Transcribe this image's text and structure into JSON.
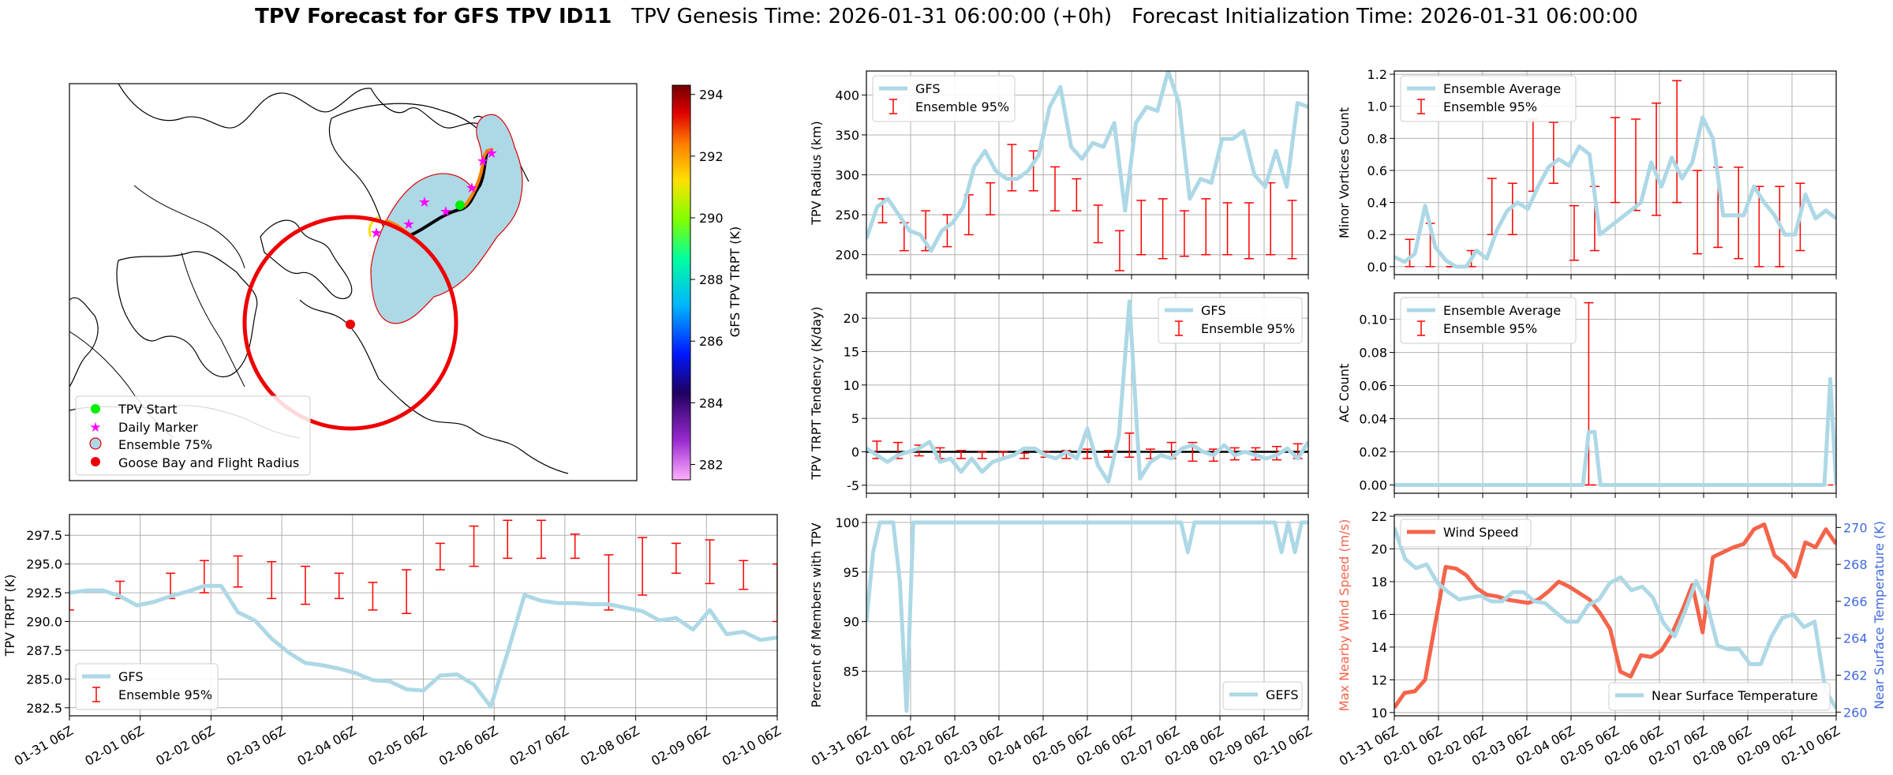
{
  "title": {
    "bold": "TPV Forecast for GFS TPV ID11",
    "genesis": "TPV Genesis Time: 2026-01-31 06:00:00 (+0h)",
    "init": "Forecast Initialization Time: 2026-01-31 06:00:00"
  },
  "colors": {
    "light_blue": "#add8e6",
    "red": "#ff0000",
    "wind": "#f4644a",
    "temp_axis": "#4169e1",
    "green": "#00ee00",
    "magenta": "#ff00ff"
  },
  "x_ticks": [
    "01-31 06Z",
    "02-01 06Z",
    "02-02 06Z",
    "02-03 06Z",
    "02-04 06Z",
    "02-05 06Z",
    "02-06 06Z",
    "02-07 06Z",
    "02-08 06Z",
    "02-09 06Z",
    "02-10 06Z"
  ],
  "map": {
    "colorbar": {
      "label": "GFS TPV TRPT (K)",
      "ticks": [
        282,
        284,
        286,
        288,
        290,
        292,
        294
      ],
      "range": [
        281.5,
        294.3
      ]
    },
    "legend": [
      "TPV Start",
      "Daily Marker",
      "Ensemble 75%",
      "Goose Bay and Flight Radius"
    ]
  },
  "chart_data": [
    {
      "id": "radius",
      "type": "line",
      "ylabel": "TPV Radius (km)",
      "ylim": [
        175,
        430
      ],
      "yticks": [
        200,
        250,
        300,
        350,
        400
      ],
      "legend": {
        "series": "GFS",
        "error": "Ensemble 95%",
        "placement": "upper left"
      },
      "series": [
        {
          "name": "GFS",
          "values": [
            220,
            260,
            270,
            250,
            230,
            225,
            205,
            230,
            240,
            260,
            310,
            330,
            305,
            295,
            295,
            305,
            325,
            385,
            410,
            335,
            320,
            340,
            335,
            365,
            255,
            365,
            385,
            380,
            430,
            390,
            270,
            295,
            290,
            345,
            345,
            355,
            300,
            285,
            330,
            285,
            390,
            385
          ]
        }
      ],
      "errorbars": [
        {
          "x": 1.5,
          "lo": 240,
          "hi": 270
        },
        {
          "x": 3.5,
          "lo": 205,
          "hi": 240
        },
        {
          "x": 5.5,
          "lo": 205,
          "hi": 255
        },
        {
          "x": 7.5,
          "lo": 210,
          "hi": 250
        },
        {
          "x": 9.5,
          "lo": 225,
          "hi": 275
        },
        {
          "x": 11.5,
          "lo": 250,
          "hi": 290
        },
        {
          "x": 13.5,
          "lo": 280,
          "hi": 338
        },
        {
          "x": 15.5,
          "lo": 280,
          "hi": 330
        },
        {
          "x": 17.5,
          "lo": 255,
          "hi": 310
        },
        {
          "x": 19.5,
          "lo": 255,
          "hi": 295
        },
        {
          "x": 21.5,
          "lo": 215,
          "hi": 262
        },
        {
          "x": 23.5,
          "lo": 180,
          "hi": 230
        },
        {
          "x": 25.5,
          "lo": 200,
          "hi": 268
        },
        {
          "x": 27.5,
          "lo": 195,
          "hi": 270
        },
        {
          "x": 29.5,
          "lo": 198,
          "hi": 255
        },
        {
          "x": 31.5,
          "lo": 200,
          "hi": 270
        },
        {
          "x": 33.5,
          "lo": 200,
          "hi": 265
        },
        {
          "x": 35.5,
          "lo": 195,
          "hi": 265
        },
        {
          "x": 37.5,
          "lo": 200,
          "hi": 290
        },
        {
          "x": 39.5,
          "lo": 195,
          "hi": 268
        }
      ]
    },
    {
      "id": "minor",
      "type": "line",
      "ylabel": "Minor Vortices Count",
      "ylim": [
        -0.05,
        1.22
      ],
      "yticks": [
        0.0,
        0.2,
        0.4,
        0.6,
        0.8,
        1.0,
        1.2
      ],
      "legend": {
        "series": "Ensemble Average",
        "error": "Ensemble 95%",
        "placement": "upper left"
      },
      "series": [
        {
          "name": "Ensemble Average",
          "values": [
            0.06,
            0.03,
            0.08,
            0.38,
            0.12,
            0.04,
            0.0,
            0.0,
            0.1,
            0.05,
            0.23,
            0.35,
            0.4,
            0.36,
            0.5,
            0.62,
            0.67,
            0.63,
            0.75,
            0.7,
            0.2,
            0.25,
            0.3,
            0.35,
            0.4,
            0.65,
            0.5,
            0.68,
            0.55,
            0.65,
            0.93,
            0.8,
            0.32,
            0.32,
            0.32,
            0.5,
            0.4,
            0.32,
            0.2,
            0.2,
            0.45,
            0.3,
            0.35,
            0.3
          ]
        }
      ],
      "errorbars": [
        {
          "x": 1.5,
          "lo": 0.0,
          "hi": 0.17
        },
        {
          "x": 3.5,
          "lo": 0.0,
          "hi": 0.27
        },
        {
          "x": 5.5,
          "lo": 0.0,
          "hi": 0.0
        },
        {
          "x": 7.5,
          "lo": 0.0,
          "hi": 0.1
        },
        {
          "x": 9.5,
          "lo": 0.2,
          "hi": 0.55
        },
        {
          "x": 11.5,
          "lo": 0.2,
          "hi": 0.52
        },
        {
          "x": 13.5,
          "lo": 0.47,
          "hi": 0.92
        },
        {
          "x": 15.5,
          "lo": 0.52,
          "hi": 0.9
        },
        {
          "x": 17.5,
          "lo": 0.04,
          "hi": 0.38
        },
        {
          "x": 19.5,
          "lo": 0.1,
          "hi": 0.5
        },
        {
          "x": 21.5,
          "lo": 0.4,
          "hi": 0.93
        },
        {
          "x": 23.5,
          "lo": 0.35,
          "hi": 0.92
        },
        {
          "x": 25.5,
          "lo": 0.32,
          "hi": 1.02
        },
        {
          "x": 27.5,
          "lo": 0.4,
          "hi": 1.16
        },
        {
          "x": 29.5,
          "lo": 0.08,
          "hi": 0.6
        },
        {
          "x": 31.5,
          "lo": 0.12,
          "hi": 0.62
        },
        {
          "x": 33.5,
          "lo": 0.05,
          "hi": 0.62
        },
        {
          "x": 35.5,
          "lo": 0.0,
          "hi": 0.5
        },
        {
          "x": 37.5,
          "lo": 0.0,
          "hi": 0.5
        },
        {
          "x": 39.5,
          "lo": 0.1,
          "hi": 0.52
        }
      ]
    },
    {
      "id": "tendency",
      "type": "line",
      "ylabel": "TPV TRPT Tendency (K/day)",
      "ylim": [
        -6.2,
        23.8
      ],
      "yticks": [
        -5,
        0,
        5,
        10,
        15,
        20
      ],
      "legend": {
        "series": "GFS",
        "error": "Ensemble 95%",
        "placement": "upper right"
      },
      "series": [
        {
          "name": "GFS",
          "values": [
            0.5,
            -0.5,
            -1.5,
            -0.5,
            0.0,
            0.5,
            1.5,
            -1.5,
            -1.0,
            -3.0,
            -1.0,
            -3.0,
            -1.5,
            -1.0,
            -0.5,
            0.5,
            0.5,
            -0.5,
            -1.0,
            0.0,
            -1.0,
            3.5,
            -2.0,
            -4.5,
            2.5,
            22.5,
            -4.0,
            -1.5,
            -0.5,
            -1.0,
            0.5,
            1.0,
            0.0,
            -0.5,
            1.0,
            -0.5,
            0.0,
            -0.5,
            -1.0,
            -0.5,
            0.5,
            -1.0,
            1.5
          ]
        }
      ],
      "errorbars": [
        {
          "x": 1,
          "lo": -1,
          "hi": 1.6
        },
        {
          "x": 3,
          "lo": -1,
          "hi": 1.4
        },
        {
          "x": 5,
          "lo": -0.6,
          "hi": 1
        },
        {
          "x": 7,
          "lo": -1,
          "hi": 0.6
        },
        {
          "x": 9,
          "lo": -1,
          "hi": 0.2
        },
        {
          "x": 11,
          "lo": -1,
          "hi": 0
        },
        {
          "x": 13,
          "lo": -1,
          "hi": 0
        },
        {
          "x": 15,
          "lo": -1,
          "hi": -0.2
        },
        {
          "x": 17,
          "lo": -0.8,
          "hi": 0
        },
        {
          "x": 19,
          "lo": -1,
          "hi": 0.2
        },
        {
          "x": 21,
          "lo": -1,
          "hi": 0.4
        },
        {
          "x": 23,
          "lo": -0.8,
          "hi": 0.2
        },
        {
          "x": 25,
          "lo": -0.8,
          "hi": 2.8
        },
        {
          "x": 27,
          "lo": -1,
          "hi": 0.4
        },
        {
          "x": 29,
          "lo": -1,
          "hi": 1.4
        },
        {
          "x": 31,
          "lo": -1.4,
          "hi": 1.4
        },
        {
          "x": 33,
          "lo": -1.4,
          "hi": 0.4
        },
        {
          "x": 35,
          "lo": -1.2,
          "hi": 0.6
        },
        {
          "x": 37,
          "lo": -1.2,
          "hi": 0.6
        },
        {
          "x": 39,
          "lo": -1.2,
          "hi": 0.8
        },
        {
          "x": 41,
          "lo": -1,
          "hi": 1.2
        }
      ]
    },
    {
      "id": "ac",
      "type": "line",
      "ylabel": "AC Count",
      "ylim": [
        -0.005,
        0.116
      ],
      "yticks": [
        0.0,
        0.02,
        0.04,
        0.06,
        0.08,
        0.1
      ],
      "legend": {
        "series": "Ensemble Average",
        "error": "Ensemble 95%",
        "placement": "upper left"
      },
      "series": [
        {
          "name": "Ensemble Average",
          "values": [
            0,
            0,
            0,
            0,
            0,
            0,
            0,
            0,
            0,
            0,
            0,
            0,
            0,
            0,
            0,
            0,
            0,
            0,
            0,
            0,
            0,
            0,
            0,
            0,
            0,
            0,
            0,
            0,
            0,
            0,
            0,
            0,
            0,
            0.032,
            0.032,
            0,
            0,
            0,
            0,
            0,
            0,
            0,
            0,
            0,
            0,
            0,
            0,
            0,
            0,
            0,
            0,
            0,
            0,
            0,
            0,
            0,
            0,
            0,
            0,
            0,
            0,
            0,
            0,
            0,
            0,
            0,
            0,
            0,
            0,
            0,
            0,
            0,
            0,
            0,
            0.064,
            0
          ]
        }
      ],
      "errorbars_x_max": 75,
      "errorbars": [
        {
          "x": 33,
          "lo": 0,
          "hi": 0.11
        }
      ]
    },
    {
      "id": "trpt",
      "type": "line",
      "ylabel": "TPV TRPT (K)",
      "ylim": [
        281.8,
        299.3
      ],
      "yticks": [
        282.5,
        285.0,
        287.5,
        290.0,
        292.5,
        295.0,
        297.5
      ],
      "legend": {
        "series": "GFS",
        "error": "Ensemble 95%",
        "placement": "lower left"
      },
      "series": [
        {
          "name": "GFS",
          "values": [
            292.5,
            292.7,
            292.7,
            292.2,
            291.4,
            291.7,
            292.2,
            292.6,
            293.1,
            293.1,
            290.8,
            290.1,
            288.5,
            287.3,
            286.4,
            286.2,
            285.9,
            285.5,
            284.9,
            284.8,
            284.1,
            284.0,
            285.3,
            285.4,
            284.5,
            282.6,
            287.3,
            292.3,
            291.8,
            291.6,
            291.6,
            291.5,
            291.5,
            291.2,
            290.9,
            290.1,
            290.3,
            289.3,
            291.0,
            288.9,
            289.1,
            288.4,
            288.6
          ]
        }
      ],
      "errorbars": [
        {
          "x": 0,
          "lo": 291,
          "hi": 292.5
        },
        {
          "x": 3,
          "lo": 292,
          "hi": 293.5
        },
        {
          "x": 6,
          "lo": 292,
          "hi": 294.2
        },
        {
          "x": 8,
          "lo": 292.5,
          "hi": 295.3
        },
        {
          "x": 10,
          "lo": 293,
          "hi": 295.7
        },
        {
          "x": 12,
          "lo": 292,
          "hi": 295.2
        },
        {
          "x": 14,
          "lo": 291.5,
          "hi": 294.8
        },
        {
          "x": 16,
          "lo": 292,
          "hi": 294.2
        },
        {
          "x": 18,
          "lo": 291,
          "hi": 293.4
        },
        {
          "x": 20,
          "lo": 290.7,
          "hi": 294.5
        },
        {
          "x": 22,
          "lo": 294.5,
          "hi": 296.8
        },
        {
          "x": 24,
          "lo": 294.8,
          "hi": 298.3
        },
        {
          "x": 26,
          "lo": 295.5,
          "hi": 298.8
        },
        {
          "x": 28,
          "lo": 295.5,
          "hi": 298.8
        },
        {
          "x": 30,
          "lo": 295.5,
          "hi": 297.6
        },
        {
          "x": 32,
          "lo": 291,
          "hi": 295.8
        },
        {
          "x": 34,
          "lo": 292.3,
          "hi": 297.3
        },
        {
          "x": 36,
          "lo": 294.2,
          "hi": 296.8
        },
        {
          "x": 38,
          "lo": 293.3,
          "hi": 297.1
        },
        {
          "x": 40,
          "lo": 292.8,
          "hi": 295.3
        },
        {
          "x": 42,
          "lo": 290,
          "hi": 295
        }
      ]
    },
    {
      "id": "percent",
      "type": "line",
      "ylabel": "Percent of Members with TPV",
      "ylim": [
        80.5,
        100.8
      ],
      "yticks": [
        85,
        90,
        95,
        100
      ],
      "legend": {
        "series": "GEFS",
        "placement": "lower right"
      },
      "series": [
        {
          "name": "GEFS",
          "values": [
            90,
            97,
            100,
            100,
            100,
            94,
            81,
            100,
            100,
            100,
            100,
            100,
            100,
            100,
            100,
            100,
            100,
            100,
            100,
            100,
            100,
            100,
            100,
            100,
            100,
            100,
            100,
            100,
            100,
            100,
            100,
            100,
            100,
            100,
            100,
            100,
            100,
            100,
            100,
            100,
            100,
            100,
            100,
            100,
            100,
            100,
            100,
            100,
            97,
            100,
            100,
            100,
            100,
            100,
            100,
            100,
            100,
            100,
            100,
            100,
            100,
            100,
            97,
            100,
            97,
            100,
            100
          ]
        }
      ]
    },
    {
      "id": "wind",
      "type": "line",
      "ylabel": "Max Nearby Wind Speed (m/s)",
      "ylabel2": "Near Surface Temperature (K)",
      "ylim": [
        9.8,
        22.1
      ],
      "yticks": [
        10,
        12,
        14,
        16,
        18,
        20,
        22
      ],
      "ylim2": [
        259.8,
        270.7
      ],
      "yticks2": [
        260,
        262,
        264,
        266,
        268,
        270
      ],
      "legend": {
        "series": "Wind Speed",
        "series2": "Near Surface Temperature",
        "placement": "upper left / lower right"
      },
      "series": [
        {
          "name": "Wind Speed",
          "values": [
            10.3,
            11.2,
            11.3,
            12.0,
            15.5,
            18.9,
            18.8,
            18.4,
            17.6,
            17.2,
            17.1,
            16.9,
            16.8,
            16.7,
            16.9,
            17.4,
            18.0,
            17.7,
            17.3,
            16.9,
            16.1,
            15.1,
            12.5,
            12.2,
            13.5,
            13.4,
            13.8,
            14.8,
            16.2,
            17.8,
            14.9,
            19.5,
            19.8,
            20.1,
            20.3,
            21.2,
            21.5,
            19.6,
            19.1,
            18.3,
            20.4,
            20.1,
            21.2,
            20.3
          ]
        },
        {
          "name": "Near Surface Temperature",
          "values": [
            270.0,
            268.3,
            267.8,
            268.0,
            267.0,
            266.5,
            266.1,
            266.2,
            266.3,
            266.0,
            266.0,
            266.5,
            266.5,
            266.0,
            265.9,
            265.4,
            264.9,
            264.9,
            265.8,
            266.1,
            267.0,
            267.3,
            266.6,
            266.8,
            266.2,
            264.8,
            264.1,
            265.5,
            267.1,
            265.9,
            263.6,
            263.4,
            263.4,
            262.6,
            262.6,
            264.1,
            265.1,
            265.3,
            264.6,
            264.9,
            261.2,
            260.2
          ]
        }
      ]
    }
  ]
}
